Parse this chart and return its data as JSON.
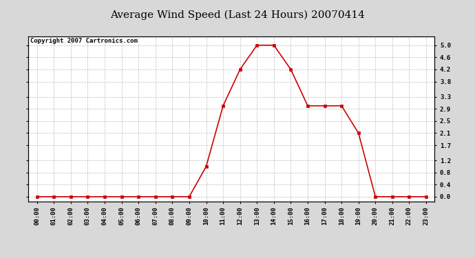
{
  "title": "Average Wind Speed (Last 24 Hours) 20070414",
  "copyright": "Copyright 2007 Cartronics.com",
  "hours": [
    0,
    1,
    2,
    3,
    4,
    5,
    6,
    7,
    8,
    9,
    10,
    11,
    12,
    13,
    14,
    15,
    16,
    17,
    18,
    19,
    20,
    21,
    22,
    23
  ],
  "hour_labels": [
    "00:00",
    "01:00",
    "02:00",
    "03:00",
    "04:00",
    "05:00",
    "06:00",
    "07:00",
    "08:00",
    "09:00",
    "10:00",
    "11:00",
    "12:00",
    "13:00",
    "14:00",
    "15:00",
    "16:00",
    "17:00",
    "18:00",
    "19:00",
    "20:00",
    "21:00",
    "22:00",
    "23:00"
  ],
  "values": [
    0.0,
    0.0,
    0.0,
    0.0,
    0.0,
    0.0,
    0.0,
    0.0,
    0.0,
    0.0,
    1.0,
    3.0,
    4.2,
    5.0,
    5.0,
    4.2,
    3.0,
    3.0,
    3.0,
    2.1,
    0.0,
    0.0,
    0.0,
    0.0
  ],
  "line_color": "#cc0000",
  "marker_color": "#cc0000",
  "bg_color": "#d8d8d8",
  "plot_bg_color": "#ffffff",
  "grid_color": "#bbbbbb",
  "yticks": [
    0.0,
    0.4,
    0.8,
    1.2,
    1.7,
    2.1,
    2.5,
    2.9,
    3.3,
    3.8,
    4.2,
    4.6,
    5.0
  ],
  "ylim": [
    -0.15,
    5.3
  ],
  "title_fontsize": 11,
  "copyright_fontsize": 6.5,
  "tick_fontsize": 6.5
}
